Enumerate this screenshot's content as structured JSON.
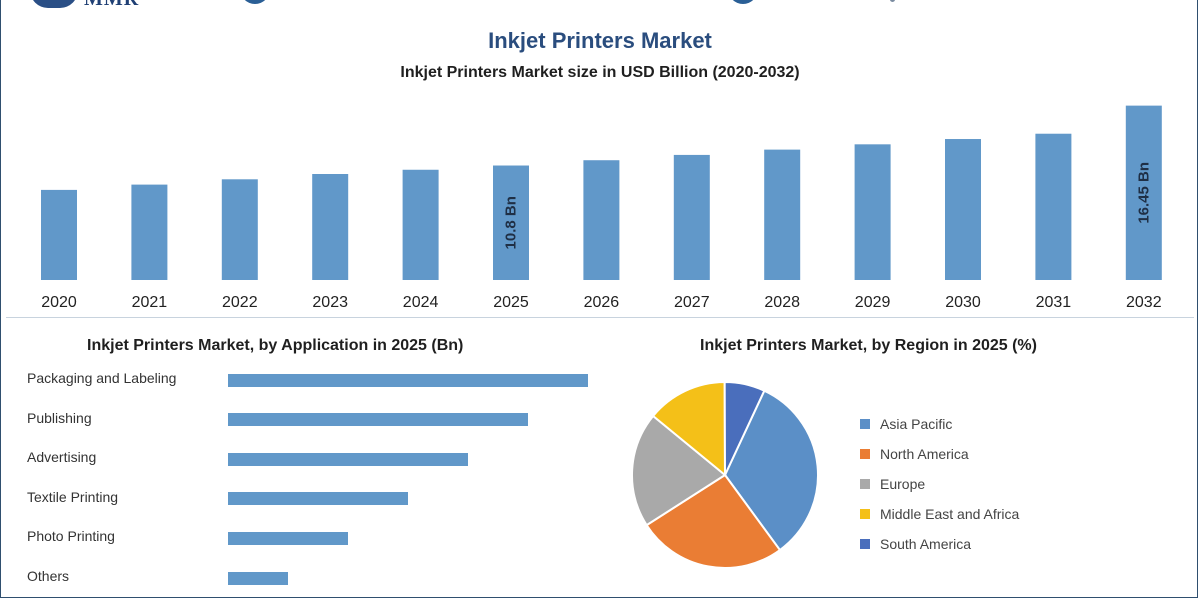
{
  "brand": {
    "logo_text": "MMR",
    "colors": {
      "title": "#2a4d7e",
      "bar": "#6198c9",
      "frame": "#2f4f6f"
    }
  },
  "header": {
    "title": "Inkjet Printers Market",
    "subtitle": "Inkjet Printers Market size in USD Billion (2020-2032)"
  },
  "application_panel": {
    "title": "Inkjet Printers Market, by Application in 2025 (Bn)"
  },
  "region_panel": {
    "title": "Inkjet Printers Market, by Region in 2025 (%)"
  },
  "chart_data": [
    {
      "type": "bar",
      "categories": [
        "2020",
        "2021",
        "2022",
        "2023",
        "2024",
        "2025",
        "2026",
        "2027",
        "2028",
        "2029",
        "2030",
        "2031",
        "2032"
      ],
      "values": [
        8.5,
        9.0,
        9.5,
        10.0,
        10.4,
        10.8,
        11.3,
        11.8,
        12.3,
        12.8,
        13.3,
        13.8,
        16.45
      ],
      "data_labels": {
        "2025": "10.8 Bn",
        "2032": "16.45 Bn"
      },
      "orientation": "vertical",
      "grid": false,
      "title": "Inkjet Printers Market size in USD Billion (2020-2032)"
    },
    {
      "type": "bar",
      "orientation": "horizontal",
      "categories": [
        "Packaging and Labeling",
        "Publishing",
        "Advertising",
        "Textile Printing",
        "Photo Printing",
        "Others"
      ],
      "values": [
        3.6,
        3.0,
        2.4,
        1.8,
        1.2,
        0.6
      ],
      "grid": false,
      "title": "Inkjet Printers Market, by Application in 2025 (Bn)"
    },
    {
      "type": "pie",
      "categories": [
        "Asia Pacific",
        "North America",
        "Europe",
        "Middle East and Africa",
        "South America"
      ],
      "values": [
        33,
        26,
        20,
        14,
        7
      ],
      "colors": [
        "#5b8fc7",
        "#ea7d34",
        "#a9a9a9",
        "#f4c018",
        "#4a6ebc"
      ],
      "legend_position": "right",
      "title": "Inkjet Printers Market, by Region in 2025 (%)"
    }
  ]
}
